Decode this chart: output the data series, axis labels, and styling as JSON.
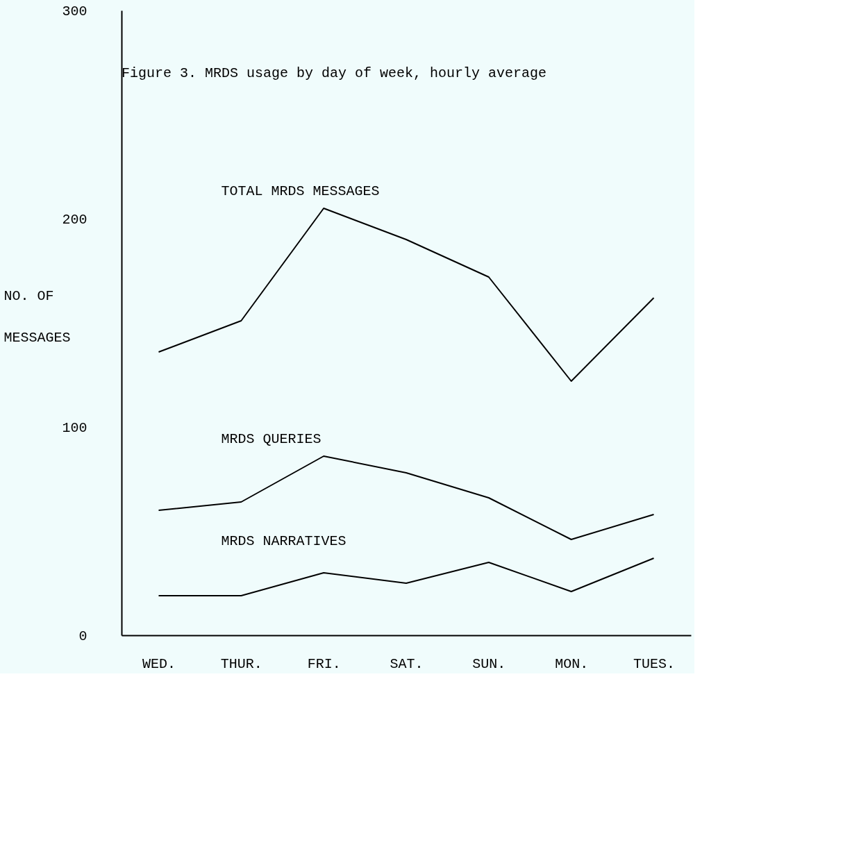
{
  "chart_data": {
    "type": "line",
    "title": "Figure 3.   MRDS usage by day of week, hourly average",
    "ylabel": "NO. OF MESSAGES",
    "categories": [
      "WED.",
      "THUR.",
      "FRI.",
      "SAT.",
      "SUN.",
      "MON.",
      "TUES."
    ],
    "series": [
      {
        "name": "TOTAL MRDS MESSAGES",
        "color": "#000000",
        "values": [
          136,
          151,
          205,
          190,
          172,
          122,
          162
        ]
      },
      {
        "name": "MRDS QUERIES",
        "color": "#000000",
        "values": [
          60,
          64,
          86,
          78,
          66,
          46,
          58
        ]
      },
      {
        "name": "MRDS NARRATIVES",
        "color": "#000000",
        "values": [
          19,
          19,
          30,
          25,
          35,
          21,
          37
        ]
      }
    ],
    "ylim": [
      0,
      300
    ],
    "yticks": [
      0,
      100,
      200,
      300
    ],
    "grid": false,
    "marker": "none",
    "line_style": "solid"
  }
}
